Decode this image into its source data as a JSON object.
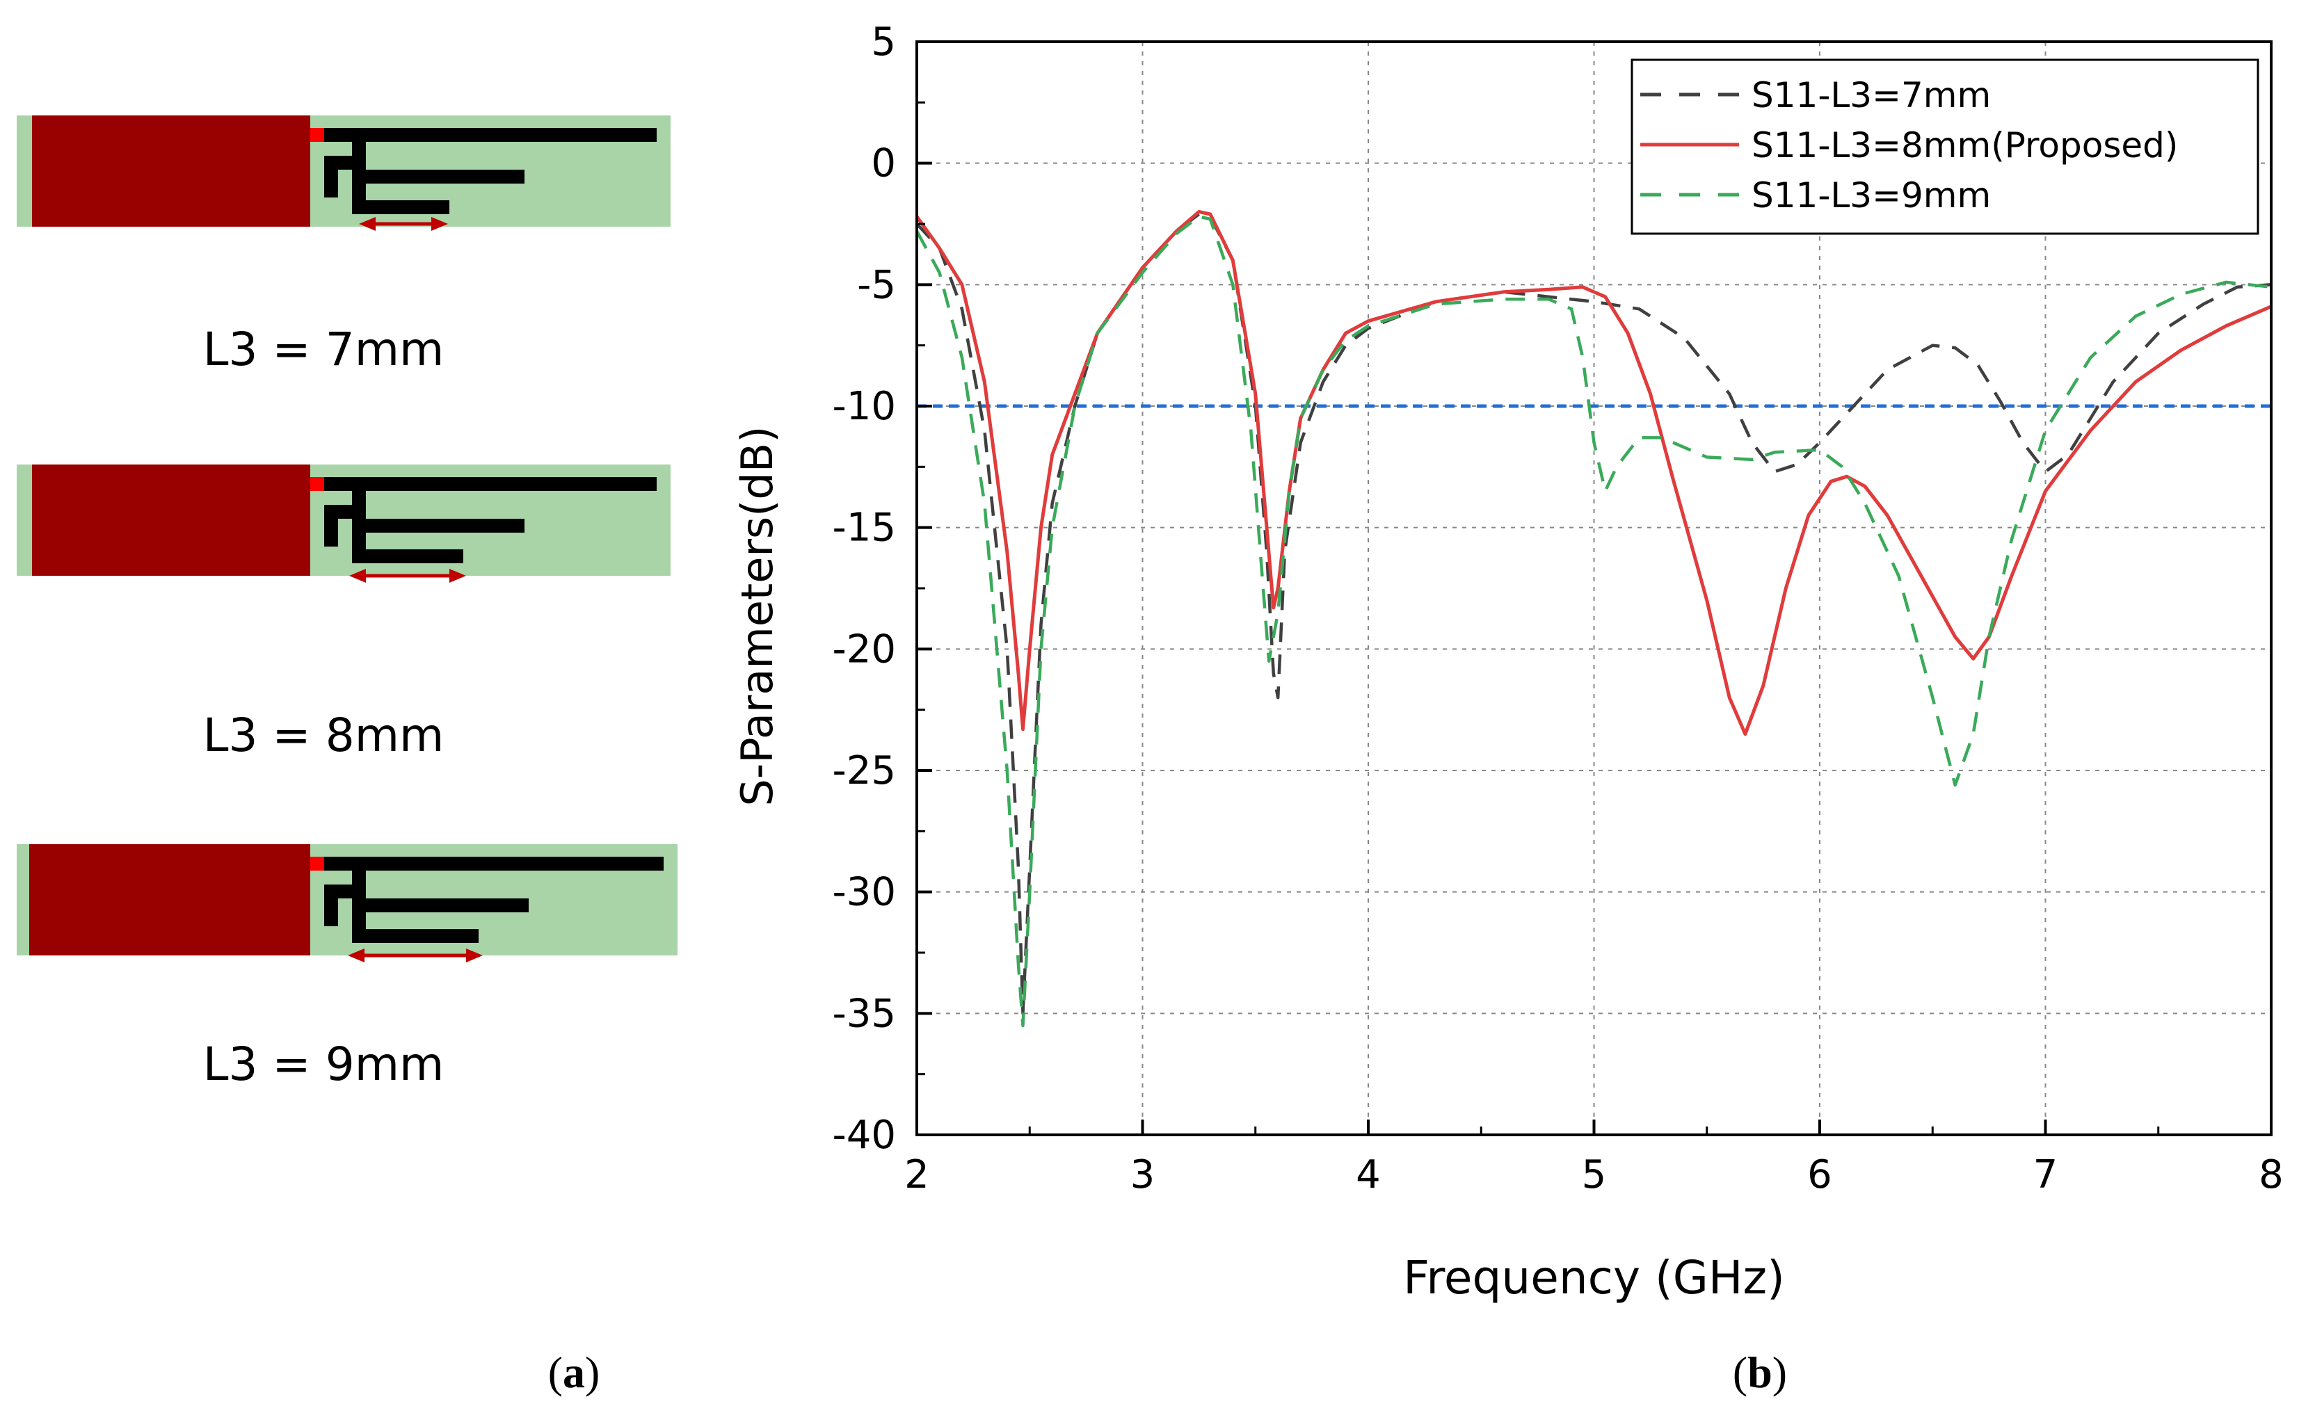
{
  "panel_a": {
    "variants": [
      {
        "label": "L3 = 7mm",
        "arrow_length_mm": 7
      },
      {
        "label": "L3 = 8mm",
        "arrow_length_mm": 8
      },
      {
        "label": "L3 = 9mm",
        "arrow_length_mm": 9
      }
    ],
    "colors": {
      "substrate": "#a8d4a8",
      "ground": "#990000",
      "trace": "#000000",
      "feed": "#ff0000",
      "arrow": "#c00000"
    },
    "caption_letter": "a"
  },
  "panel_b": {
    "caption_letter": "b"
  },
  "chart_data": {
    "type": "line",
    "xlabel": "Frequency (GHz)",
    "ylabel": "S-Parameters(dB)",
    "xlim": [
      2,
      8
    ],
    "ylim": [
      -40,
      5
    ],
    "xticks": [
      2,
      3,
      4,
      5,
      6,
      7,
      8
    ],
    "yticks": [
      5,
      0,
      -5,
      -10,
      -15,
      -20,
      -25,
      -30,
      -35,
      -40
    ],
    "grid": true,
    "legend_position": "top-right",
    "reference_line": {
      "y": -10,
      "color": "#1f6fd6",
      "style": "dashed"
    },
    "series": [
      {
        "name": "S11-L3=7mm",
        "color": "#404040",
        "dash": "dashed",
        "points": [
          [
            2.0,
            -2.5
          ],
          [
            2.1,
            -3.5
          ],
          [
            2.2,
            -6.0
          ],
          [
            2.3,
            -11.0
          ],
          [
            2.4,
            -20.0
          ],
          [
            2.45,
            -29.0
          ],
          [
            2.47,
            -35.0
          ],
          [
            2.5,
            -29.0
          ],
          [
            2.55,
            -19.0
          ],
          [
            2.6,
            -14.0
          ],
          [
            2.7,
            -10.0
          ],
          [
            2.8,
            -7.0
          ],
          [
            3.0,
            -4.3
          ],
          [
            3.15,
            -2.8
          ],
          [
            3.25,
            -2.1
          ],
          [
            3.3,
            -2.2
          ],
          [
            3.4,
            -4.0
          ],
          [
            3.5,
            -10.0
          ],
          [
            3.55,
            -16.0
          ],
          [
            3.58,
            -21.0
          ],
          [
            3.6,
            -22.0
          ],
          [
            3.63,
            -16.0
          ],
          [
            3.7,
            -11.5
          ],
          [
            3.8,
            -9.0
          ],
          [
            3.9,
            -7.5
          ],
          [
            4.0,
            -6.8
          ],
          [
            4.3,
            -5.7
          ],
          [
            4.6,
            -5.3
          ],
          [
            4.8,
            -5.5
          ],
          [
            5.0,
            -5.7
          ],
          [
            5.2,
            -6.0
          ],
          [
            5.4,
            -7.2
          ],
          [
            5.6,
            -9.5
          ],
          [
            5.7,
            -11.5
          ],
          [
            5.8,
            -12.7
          ],
          [
            5.9,
            -12.4
          ],
          [
            6.0,
            -11.5
          ],
          [
            6.1,
            -10.5
          ],
          [
            6.2,
            -9.5
          ],
          [
            6.3,
            -8.5
          ],
          [
            6.5,
            -7.5
          ],
          [
            6.6,
            -7.6
          ],
          [
            6.7,
            -8.3
          ],
          [
            6.8,
            -9.8
          ],
          [
            6.9,
            -11.5
          ],
          [
            7.0,
            -12.7
          ],
          [
            7.1,
            -12.0
          ],
          [
            7.2,
            -10.5
          ],
          [
            7.3,
            -9.0
          ],
          [
            7.5,
            -7.0
          ],
          [
            7.7,
            -5.8
          ],
          [
            7.85,
            -5.1
          ],
          [
            8.0,
            -5.0
          ]
        ]
      },
      {
        "name": "S11-L3=8mm(Proposed)",
        "color": "#e03c3c",
        "dash": "solid",
        "points": [
          [
            2.0,
            -2.2
          ],
          [
            2.1,
            -3.5
          ],
          [
            2.2,
            -5.0
          ],
          [
            2.3,
            -9.0
          ],
          [
            2.4,
            -16.0
          ],
          [
            2.45,
            -21.0
          ],
          [
            2.47,
            -23.3
          ],
          [
            2.5,
            -20.0
          ],
          [
            2.55,
            -15.0
          ],
          [
            2.6,
            -12.0
          ],
          [
            2.7,
            -9.5
          ],
          [
            2.8,
            -7.0
          ],
          [
            3.0,
            -4.3
          ],
          [
            3.15,
            -2.8
          ],
          [
            3.25,
            -2.0
          ],
          [
            3.3,
            -2.1
          ],
          [
            3.4,
            -4.0
          ],
          [
            3.5,
            -9.5
          ],
          [
            3.55,
            -15.0
          ],
          [
            3.58,
            -18.3
          ],
          [
            3.6,
            -17.5
          ],
          [
            3.65,
            -13.5
          ],
          [
            3.7,
            -10.5
          ],
          [
            3.8,
            -8.5
          ],
          [
            3.9,
            -7.0
          ],
          [
            4.0,
            -6.5
          ],
          [
            4.3,
            -5.7
          ],
          [
            4.6,
            -5.3
          ],
          [
            4.8,
            -5.2
          ],
          [
            4.95,
            -5.1
          ],
          [
            5.05,
            -5.5
          ],
          [
            5.15,
            -7.0
          ],
          [
            5.25,
            -9.5
          ],
          [
            5.35,
            -13.0
          ],
          [
            5.5,
            -18.0
          ],
          [
            5.6,
            -22.0
          ],
          [
            5.67,
            -23.5
          ],
          [
            5.75,
            -21.5
          ],
          [
            5.85,
            -17.5
          ],
          [
            5.95,
            -14.5
          ],
          [
            6.05,
            -13.1
          ],
          [
            6.12,
            -12.9
          ],
          [
            6.2,
            -13.3
          ],
          [
            6.3,
            -14.5
          ],
          [
            6.45,
            -17.0
          ],
          [
            6.6,
            -19.5
          ],
          [
            6.68,
            -20.4
          ],
          [
            6.75,
            -19.5
          ],
          [
            6.85,
            -17.0
          ],
          [
            7.0,
            -13.5
          ],
          [
            7.2,
            -11.0
          ],
          [
            7.4,
            -9.0
          ],
          [
            7.6,
            -7.7
          ],
          [
            7.8,
            -6.7
          ],
          [
            8.0,
            -5.9
          ]
        ]
      },
      {
        "name": "S11-L3=9mm",
        "color": "#3aaa5a",
        "dash": "dashed",
        "points": [
          [
            2.0,
            -2.8
          ],
          [
            2.1,
            -4.5
          ],
          [
            2.2,
            -8.0
          ],
          [
            2.3,
            -14.0
          ],
          [
            2.4,
            -25.0
          ],
          [
            2.45,
            -33.0
          ],
          [
            2.47,
            -35.5
          ],
          [
            2.5,
            -30.0
          ],
          [
            2.55,
            -20.0
          ],
          [
            2.6,
            -15.0
          ],
          [
            2.7,
            -10.0
          ],
          [
            2.8,
            -7.0
          ],
          [
            3.0,
            -4.5
          ],
          [
            3.15,
            -2.9
          ],
          [
            3.25,
            -2.2
          ],
          [
            3.3,
            -2.3
          ],
          [
            3.4,
            -5.0
          ],
          [
            3.48,
            -11.0
          ],
          [
            3.53,
            -17.0
          ],
          [
            3.56,
            -20.5
          ],
          [
            3.6,
            -18.5
          ],
          [
            3.65,
            -13.5
          ],
          [
            3.7,
            -10.5
          ],
          [
            3.8,
            -8.5
          ],
          [
            3.9,
            -7.3
          ],
          [
            4.0,
            -6.7
          ],
          [
            4.3,
            -5.8
          ],
          [
            4.6,
            -5.6
          ],
          [
            4.8,
            -5.6
          ],
          [
            4.9,
            -6.0
          ],
          [
            4.95,
            -8.0
          ],
          [
            5.0,
            -11.5
          ],
          [
            5.05,
            -13.5
          ],
          [
            5.1,
            -12.5
          ],
          [
            5.2,
            -11.3
          ],
          [
            5.3,
            -11.3
          ],
          [
            5.5,
            -12.1
          ],
          [
            5.7,
            -12.2
          ],
          [
            5.8,
            -11.9
          ],
          [
            6.0,
            -11.8
          ],
          [
            6.1,
            -12.5
          ],
          [
            6.2,
            -14.0
          ],
          [
            6.35,
            -17.0
          ],
          [
            6.5,
            -22.0
          ],
          [
            6.6,
            -25.6
          ],
          [
            6.68,
            -23.5
          ],
          [
            6.75,
            -19.5
          ],
          [
            6.85,
            -15.5
          ],
          [
            7.0,
            -11.0
          ],
          [
            7.2,
            -8.0
          ],
          [
            7.4,
            -6.3
          ],
          [
            7.6,
            -5.4
          ],
          [
            7.8,
            -4.9
          ],
          [
            8.0,
            -5.1
          ]
        ]
      }
    ]
  }
}
